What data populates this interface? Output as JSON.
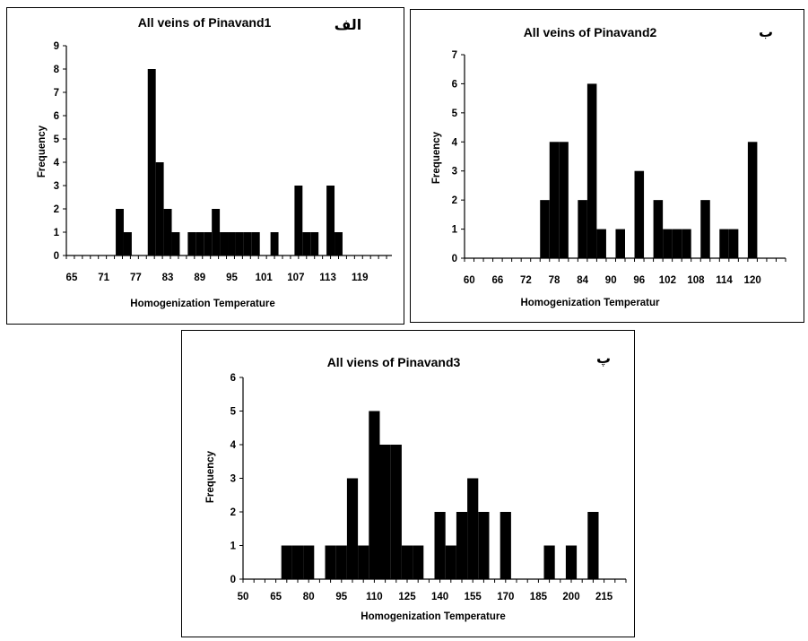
{
  "chart_data": [
    {
      "type": "bar",
      "panel_tag": "الف",
      "title": "All veins of Pinavand1",
      "xlabel": "Homogenization Temperature",
      "ylabel": "Frequency",
      "ylim": [
        0,
        9
      ],
      "yticks": [
        0,
        1,
        2,
        3,
        4,
        5,
        6,
        7,
        8,
        9
      ],
      "xlim": [
        64,
        125
      ],
      "xtick_labels": [
        65,
        71,
        77,
        83,
        89,
        95,
        101,
        107,
        113,
        119
      ],
      "bin_width": 1.5,
      "x": [
        74,
        75.5,
        80,
        81.5,
        83,
        84.5,
        87.5,
        89,
        90.5,
        92,
        93.5,
        95,
        96.5,
        98,
        99.5,
        103,
        107.5,
        109,
        110.5,
        113.5,
        115
      ],
      "values": [
        2,
        1,
        8,
        4,
        2,
        1,
        1,
        1,
        1,
        2,
        1,
        1,
        1,
        1,
        1,
        1,
        3,
        1,
        1,
        3,
        1
      ],
      "bar_color": "#000000"
    },
    {
      "type": "bar",
      "panel_tag": "ب",
      "title": "All veins of Pinavand2",
      "xlabel": "Homogenization Temperatur",
      "ylabel": "Frequency",
      "ylim": [
        0,
        7
      ],
      "yticks": [
        0,
        1,
        2,
        3,
        4,
        5,
        6,
        7
      ],
      "xlim": [
        59,
        127
      ],
      "xtick_labels": [
        60,
        66,
        72,
        78,
        84,
        90,
        96,
        102,
        108,
        114,
        120
      ],
      "bin_width": 2,
      "x": [
        76,
        78,
        80,
        84,
        86,
        88,
        92,
        96,
        100,
        102,
        104,
        106,
        110,
        114,
        116,
        120
      ],
      "values": [
        2,
        4,
        4,
        2,
        6,
        1,
        1,
        3,
        2,
        1,
        1,
        1,
        2,
        1,
        1,
        4
      ],
      "bar_color": "#000000"
    },
    {
      "type": "bar",
      "panel_tag": "پ",
      "title": "All viens of Pinavand3",
      "xlabel": "Homogenization Temperature",
      "ylabel": "Frequency",
      "ylim": [
        0,
        6
      ],
      "yticks": [
        0,
        1,
        2,
        3,
        4,
        5,
        6
      ],
      "xlim": [
        50,
        225
      ],
      "xtick_labels": [
        50,
        65,
        80,
        95,
        110,
        125,
        140,
        155,
        170,
        185,
        200,
        215
      ],
      "bin_width": 5,
      "x": [
        70,
        75,
        80,
        90,
        95,
        100,
        105,
        110,
        115,
        120,
        125,
        130,
        140,
        145,
        150,
        155,
        160,
        170,
        190,
        200,
        210
      ],
      "values": [
        1,
        1,
        1,
        1,
        1,
        3,
        1,
        5,
        4,
        4,
        1,
        1,
        2,
        1,
        2,
        3,
        2,
        2,
        1,
        1,
        2
      ],
      "bar_color": "#000000"
    }
  ]
}
